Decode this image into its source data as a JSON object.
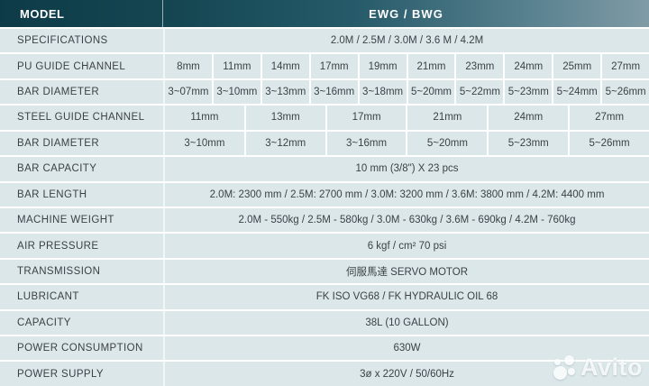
{
  "header": {
    "model_label": "MODEL",
    "model_value": "EWG / BWG"
  },
  "table": {
    "rows": [
      {
        "label": "SPECIFICATIONS",
        "value": "2.0M / 2.5M / 3.0M / 3.6 M / 4.2M"
      },
      {
        "label": "PU GUIDE CHANNEL",
        "cells": [
          "8mm",
          "11mm",
          "14mm",
          "17mm",
          "19mm",
          "21mm",
          "23mm",
          "24mm",
          "25mm",
          "27mm"
        ]
      },
      {
        "label": "BAR DIAMETER",
        "cells": [
          "3~07mm",
          "3~10mm",
          "3~13mm",
          "3~16mm",
          "3~18mm",
          "5~20mm",
          "5~22mm",
          "5~23mm",
          "5~24mm",
          "5~26mm"
        ]
      },
      {
        "label": "STEEL GUIDE CHANNEL",
        "cells": [
          "11mm",
          "13mm",
          "17mm",
          "21mm",
          "24mm",
          "27mm"
        ]
      },
      {
        "label": "BAR DIAMETER",
        "cells": [
          "3~10mm",
          "3~12mm",
          "3~16mm",
          "5~20mm",
          "5~23mm",
          "5~26mm"
        ]
      },
      {
        "label": "BAR CAPACITY",
        "value": "10 mm (3/8\")  X  23 pcs"
      },
      {
        "label": "BAR LENGTH",
        "value": "2.0M: 2300 mm  /  2.5M: 2700 mm / 3.0M: 3200 mm / 3.6M: 3800 mm / 4.2M: 4400 mm"
      },
      {
        "label": "MACHINE WEIGHT",
        "value": "2.0M - 550kg / 2.5M - 580kg / 3.0M - 630kg / 3.6M - 690kg / 4.2M - 760kg"
      },
      {
        "label": "AIR PRESSURE",
        "value": "6 kgf / cm²  70 psi"
      },
      {
        "label": "TRANSMISSION",
        "value": "伺服馬達 SERVO MOTOR"
      },
      {
        "label": "LUBRICANT",
        "value": "FK ISO VG68 / FK HYDRAULIC OIL 68"
      },
      {
        "label": "CAPACITY",
        "value": "38L (10 GALLON)"
      },
      {
        "label": "POWER CONSUMPTION",
        "value": "630W"
      },
      {
        "label": "POWER SUPPLY",
        "value": "3ø x 220V /  50/60Hz"
      }
    ]
  },
  "watermark": {
    "text": "Avito"
  },
  "colors": {
    "header_gradient_left": "#0e3b48",
    "header_gradient_mid": "#275b6a",
    "header_gradient_right": "#7f9ba6",
    "header_text": "#ffffff",
    "row_background": "#dce7ea",
    "grid_line": "#ffffff",
    "body_text": "#3b4247"
  }
}
